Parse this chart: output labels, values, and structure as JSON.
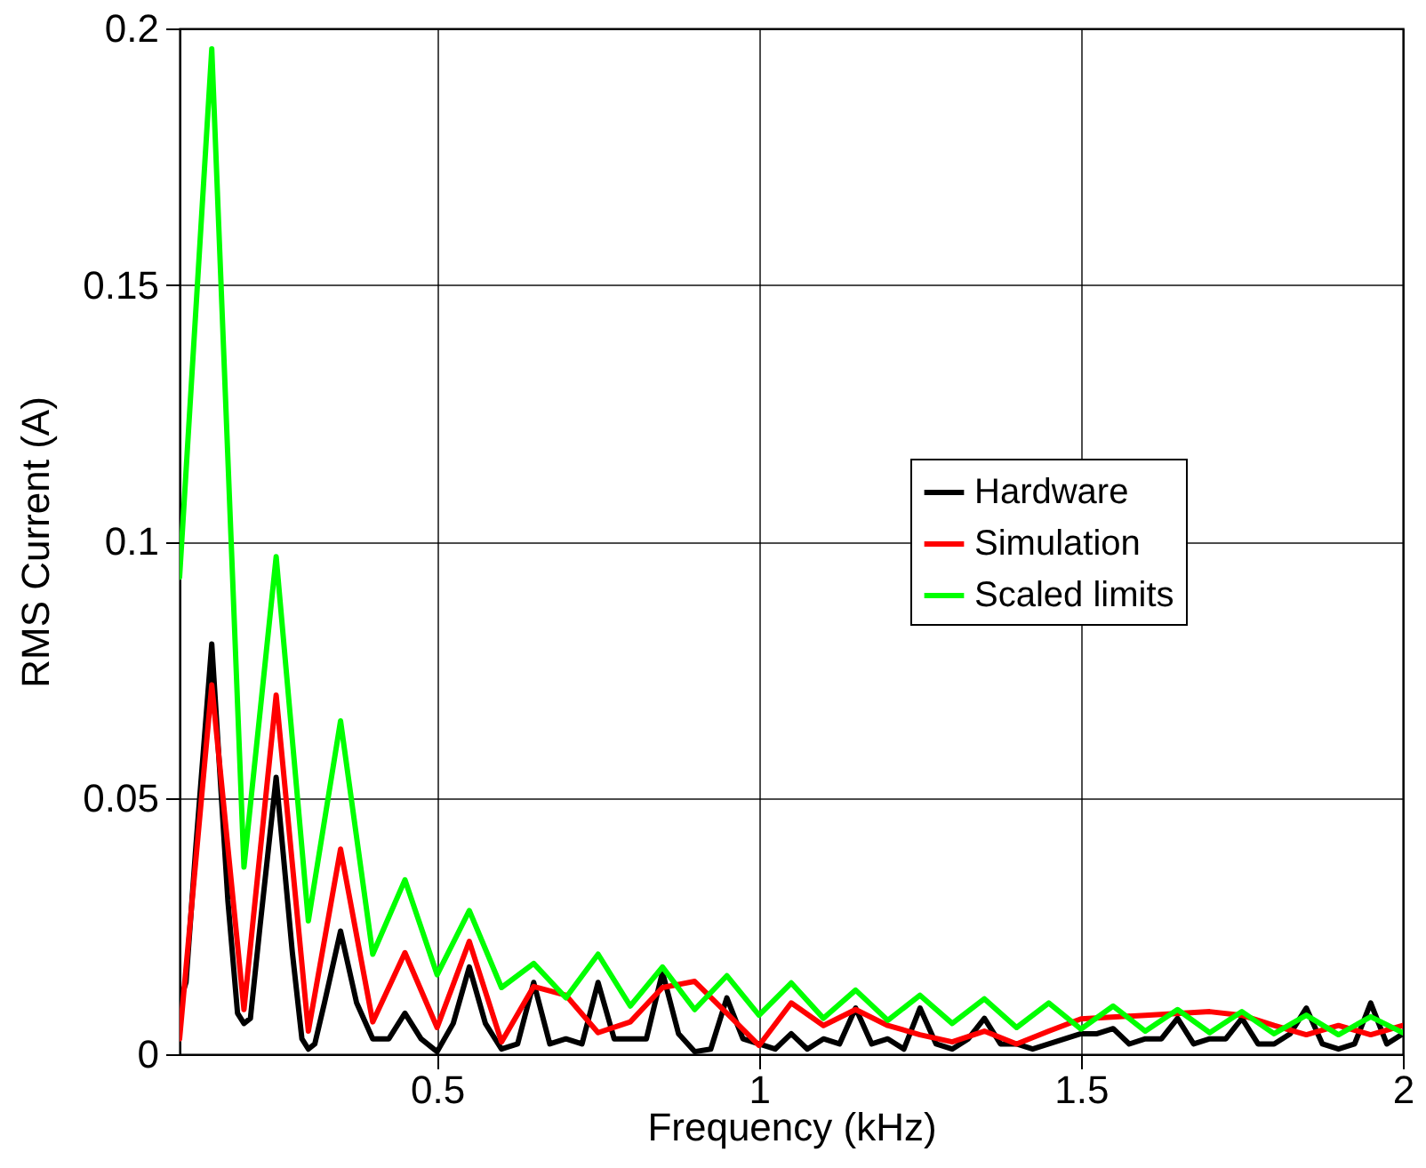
{
  "chart_data": {
    "type": "line",
    "xlabel": "Frequency (kHz)",
    "ylabel": "RMS Current (A)",
    "xlim": [
      0.1,
      2
    ],
    "xticks": [
      0.5,
      1,
      1.5,
      2
    ],
    "ylim": [
      0,
      0.2
    ],
    "yticks": [
      0,
      0.05,
      0.1,
      0.15,
      0.2
    ],
    "grid": true,
    "legend": "right",
    "marker": "none",
    "line_style": "solid",
    "series": [
      {
        "name": "Hardware",
        "color": "#000000",
        "x": [
          0.1,
          0.11,
          0.125,
          0.15,
          0.175,
          0.19,
          0.2,
          0.21,
          0.225,
          0.25,
          0.275,
          0.29,
          0.3,
          0.31,
          0.325,
          0.35,
          0.375,
          0.4,
          0.425,
          0.45,
          0.475,
          0.5,
          0.525,
          0.55,
          0.575,
          0.6,
          0.625,
          0.65,
          0.675,
          0.7,
          0.725,
          0.75,
          0.775,
          0.8,
          0.825,
          0.85,
          0.875,
          0.9,
          0.925,
          0.95,
          0.975,
          1.0,
          1.025,
          1.05,
          1.075,
          1.1,
          1.125,
          1.15,
          1.175,
          1.2,
          1.225,
          1.25,
          1.275,
          1.3,
          1.325,
          1.35,
          1.375,
          1.4,
          1.425,
          1.45,
          1.475,
          1.5,
          1.525,
          1.55,
          1.575,
          1.6,
          1.625,
          1.65,
          1.675,
          1.7,
          1.725,
          1.75,
          1.775,
          1.8,
          1.825,
          1.85,
          1.875,
          1.9,
          1.925,
          1.95,
          1.975,
          2.0
        ],
        "values": [
          0.01,
          0.014,
          0.04,
          0.08,
          0.03,
          0.008,
          0.006,
          0.007,
          0.025,
          0.054,
          0.02,
          0.003,
          0.001,
          0.002,
          0.01,
          0.024,
          0.01,
          0.003,
          0.003,
          0.008,
          0.003,
          0.0005,
          0.006,
          0.017,
          0.006,
          0.001,
          0.002,
          0.014,
          0.002,
          0.003,
          0.002,
          0.014,
          0.003,
          0.003,
          0.003,
          0.016,
          0.004,
          0.0005,
          0.001,
          0.011,
          0.003,
          0.002,
          0.001,
          0.004,
          0.001,
          0.003,
          0.002,
          0.009,
          0.002,
          0.003,
          0.001,
          0.009,
          0.002,
          0.001,
          0.003,
          0.007,
          0.002,
          0.002,
          0.001,
          0.002,
          0.003,
          0.004,
          0.004,
          0.005,
          0.002,
          0.003,
          0.003,
          0.007,
          0.002,
          0.003,
          0.003,
          0.007,
          0.002,
          0.002,
          0.004,
          0.009,
          0.002,
          0.001,
          0.002,
          0.01,
          0.002,
          0.004
        ]
      },
      {
        "name": "Simulation",
        "color": "#ff0000",
        "x": [
          0.1,
          0.15,
          0.2,
          0.25,
          0.3,
          0.35,
          0.4,
          0.45,
          0.5,
          0.55,
          0.6,
          0.65,
          0.7,
          0.75,
          0.8,
          0.85,
          0.9,
          0.95,
          1.0,
          1.05,
          1.1,
          1.15,
          1.2,
          1.25,
          1.3,
          1.35,
          1.4,
          1.45,
          1.5,
          1.6,
          1.7,
          1.75,
          1.8,
          1.85,
          1.9,
          1.95,
          2.0
        ],
        "values": [
          0.003,
          0.072,
          0.0087,
          0.07,
          0.0045,
          0.04,
          0.0063,
          0.0198,
          0.0052,
          0.022,
          0.0024,
          0.0132,
          0.0115,
          0.0042,
          0.0063,
          0.013,
          0.0142,
          0.008,
          0.0017,
          0.01,
          0.0056,
          0.0087,
          0.0056,
          0.0038,
          0.0024,
          0.0045,
          0.002,
          0.0045,
          0.0069,
          0.0076,
          0.0083,
          0.0076,
          0.0056,
          0.0038,
          0.0056,
          0.0038,
          0.0056
        ]
      },
      {
        "name": "Scaled limits",
        "color": "#00ff00",
        "x": [
          0.1,
          0.15,
          0.2,
          0.25,
          0.3,
          0.35,
          0.4,
          0.45,
          0.5,
          0.55,
          0.6,
          0.65,
          0.7,
          0.75,
          0.8,
          0.85,
          0.9,
          0.95,
          1.0,
          1.05,
          1.1,
          1.15,
          1.2,
          1.25,
          1.3,
          1.35,
          1.4,
          1.45,
          1.5,
          1.55,
          1.6,
          1.65,
          1.7,
          1.75,
          1.8,
          1.85,
          1.9,
          1.95,
          2.0
        ],
        "values": [
          0.093,
          0.196,
          0.0365,
          0.097,
          0.026,
          0.065,
          0.0195,
          0.034,
          0.0155,
          0.028,
          0.013,
          0.0177,
          0.011,
          0.0195,
          0.0094,
          0.017,
          0.0087,
          0.0153,
          0.0076,
          0.0139,
          0.007,
          0.0125,
          0.0066,
          0.0115,
          0.006,
          0.0108,
          0.0052,
          0.01,
          0.0049,
          0.0094,
          0.0045,
          0.0087,
          0.0042,
          0.0083,
          0.004,
          0.0076,
          0.0038,
          0.0073,
          0.0042
        ]
      }
    ]
  }
}
